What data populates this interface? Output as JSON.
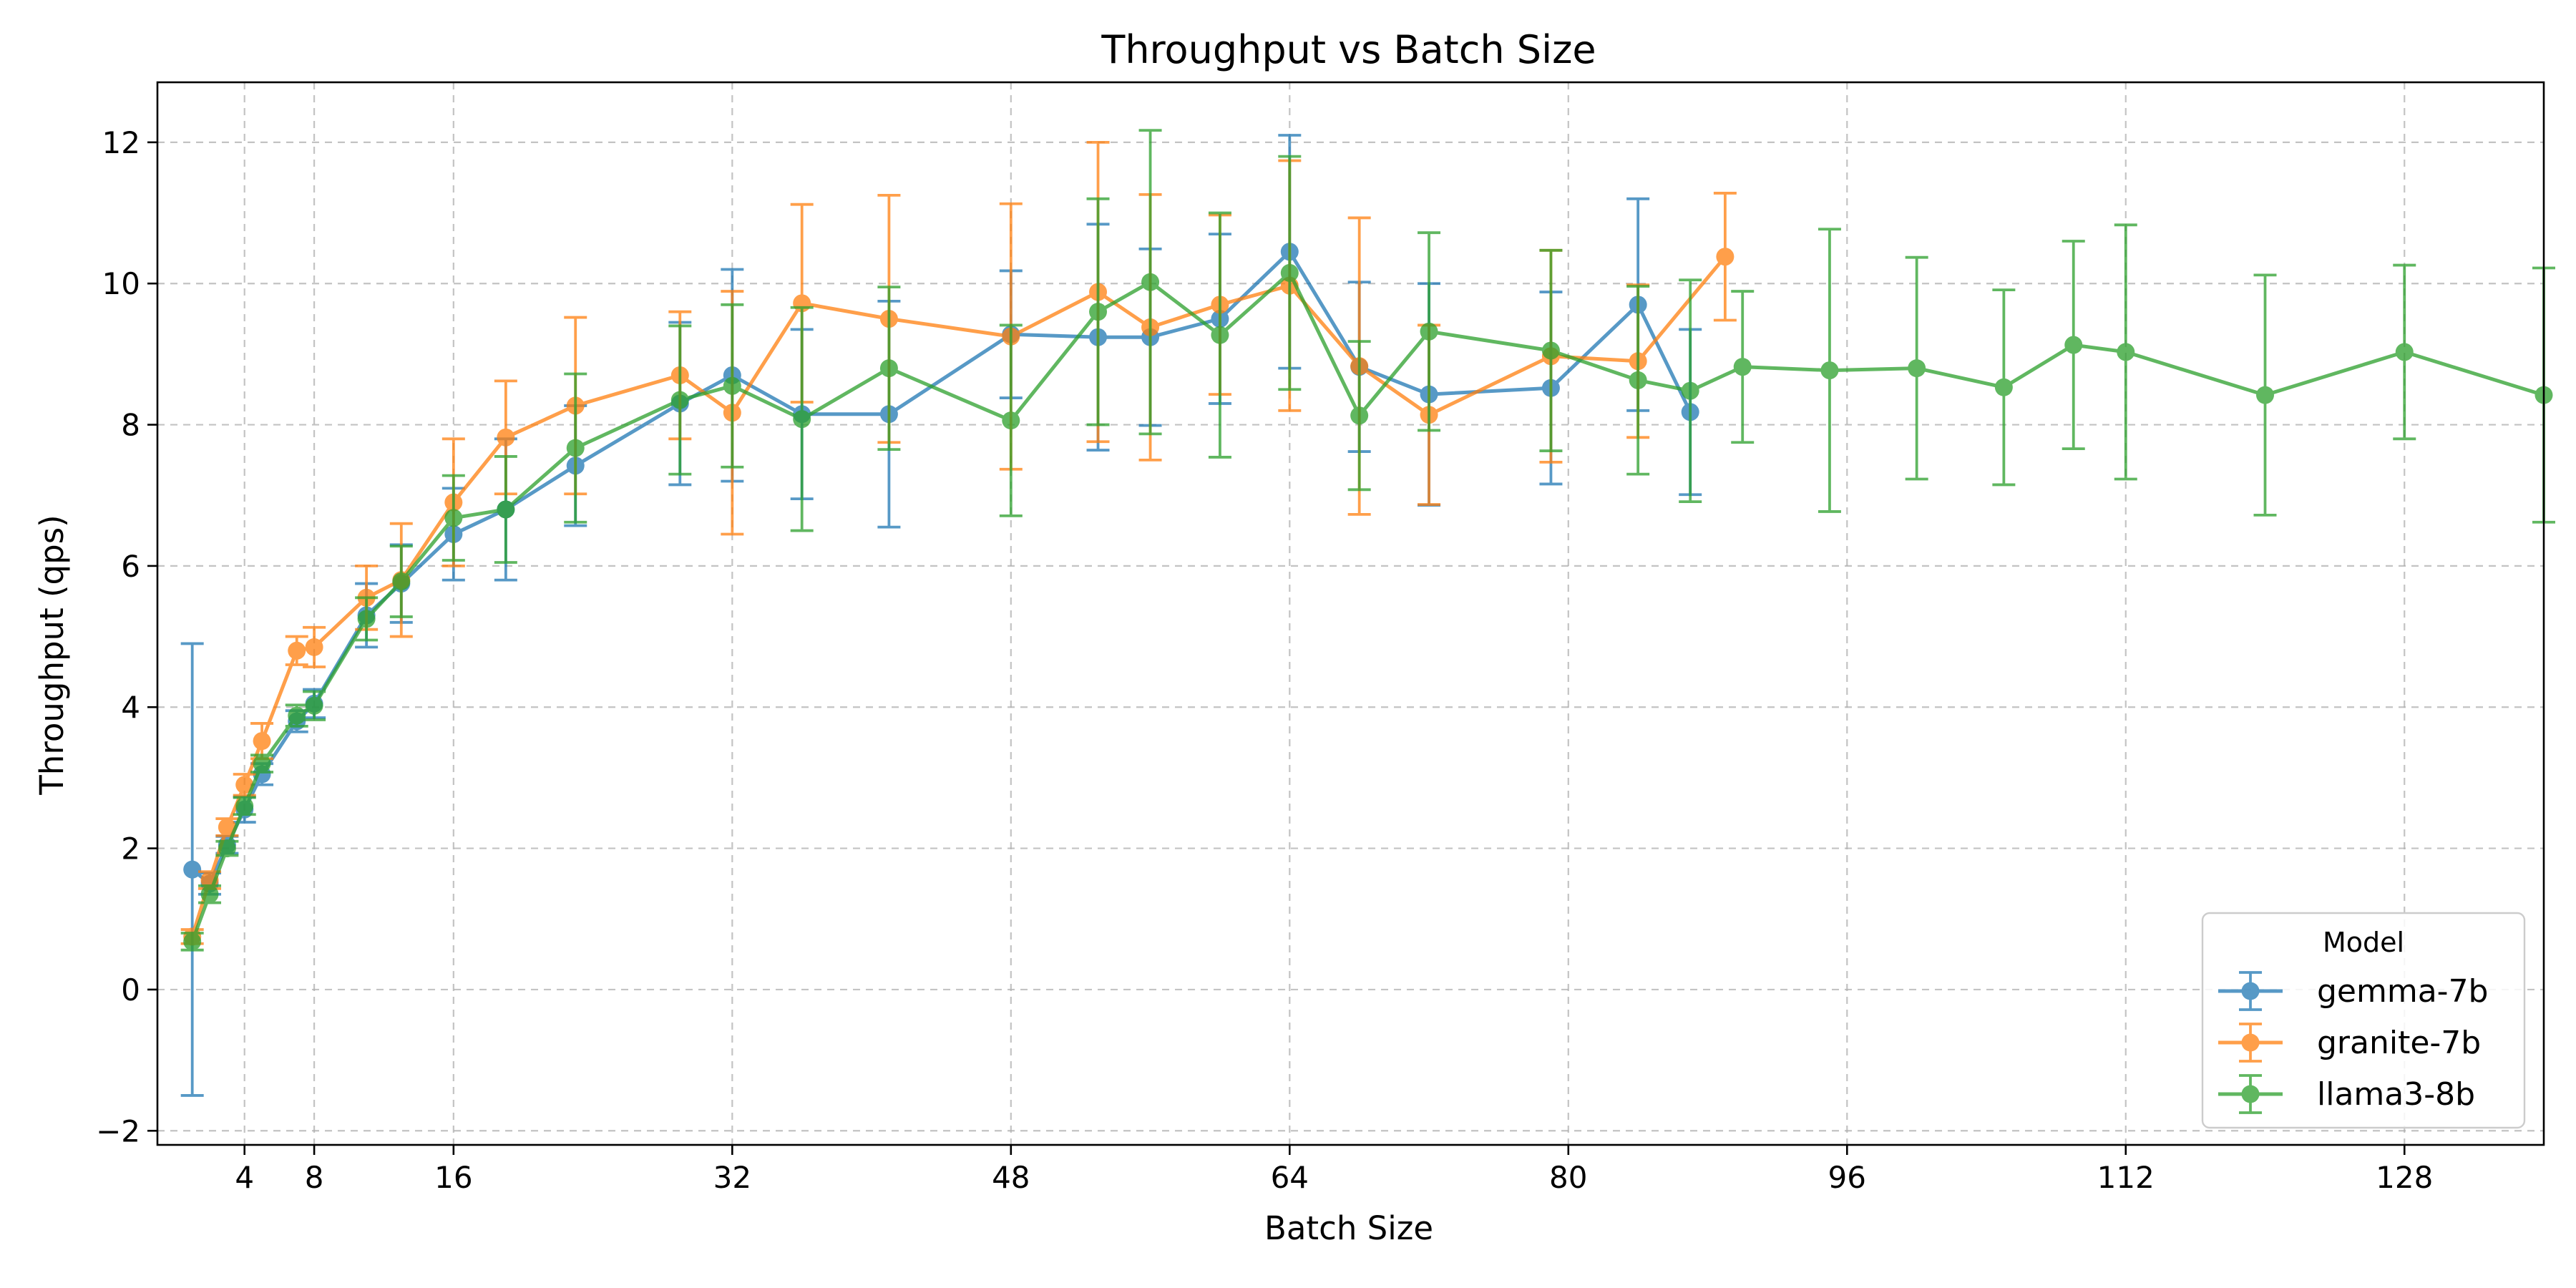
{
  "chart_data": {
    "type": "line",
    "title": "Throughput vs Batch Size",
    "xlabel": "Batch Size",
    "ylabel": "Throughput (qps)",
    "xlim": [
      -1,
      136
    ],
    "ylim": [
      -2.2,
      12.85
    ],
    "xticks": [
      4,
      8,
      16,
      32,
      48,
      64,
      80,
      96,
      112,
      128
    ],
    "yticks": [
      -2,
      0,
      2,
      4,
      6,
      8,
      10,
      12
    ],
    "ytick_labels": [
      "−2",
      "0",
      "2",
      "4",
      "6",
      "8",
      "10",
      "12"
    ],
    "grid": true,
    "legend": {
      "title": "Model",
      "position": "bottom-right"
    },
    "series": [
      {
        "name": "gemma-7b",
        "color": "#1f77b4",
        "points": [
          {
            "x": 1,
            "y": 1.7,
            "err": 3.2
          },
          {
            "x": 2,
            "y": 1.5,
            "err": 0.15
          },
          {
            "x": 3,
            "y": 2.05,
            "err": 0.12
          },
          {
            "x": 4,
            "y": 2.55,
            "err": 0.18
          },
          {
            "x": 5,
            "y": 3.05,
            "err": 0.15
          },
          {
            "x": 7,
            "y": 3.8,
            "err": 0.15
          },
          {
            "x": 8,
            "y": 4.05,
            "err": 0.2
          },
          {
            "x": 11,
            "y": 5.3,
            "err": 0.45
          },
          {
            "x": 13,
            "y": 5.75,
            "err": 0.55
          },
          {
            "x": 16,
            "y": 6.45,
            "err": 0.65
          },
          {
            "x": 19,
            "y": 6.8,
            "err": 1.0
          },
          {
            "x": 23,
            "y": 7.42,
            "err": 0.85
          },
          {
            "x": 29,
            "y": 8.3,
            "err": 1.15
          },
          {
            "x": 32,
            "y": 8.7,
            "err": 1.5
          },
          {
            "x": 36,
            "y": 8.15,
            "err": 1.2
          },
          {
            "x": 41,
            "y": 8.15,
            "err": 1.6
          },
          {
            "x": 48,
            "y": 9.28,
            "err": 0.9
          },
          {
            "x": 53,
            "y": 9.24,
            "err": 1.6
          },
          {
            "x": 56,
            "y": 9.24,
            "err": 1.25
          },
          {
            "x": 60,
            "y": 9.5,
            "err": 1.2
          },
          {
            "x": 64,
            "y": 10.45,
            "err": 1.65
          },
          {
            "x": 68,
            "y": 8.82,
            "err": 1.2
          },
          {
            "x": 72,
            "y": 8.43,
            "err": 1.57
          },
          {
            "x": 79,
            "y": 8.52,
            "err": 1.36
          },
          {
            "x": 84,
            "y": 9.7,
            "err": 1.5
          },
          {
            "x": 87,
            "y": 8.18,
            "err": 1.17
          }
        ]
      },
      {
        "name": "granite-7b",
        "color": "#ff7f0e",
        "points": [
          {
            "x": 1,
            "y": 0.75,
            "err": 0.1
          },
          {
            "x": 2,
            "y": 1.55,
            "err": 0.12
          },
          {
            "x": 3,
            "y": 2.3,
            "err": 0.12
          },
          {
            "x": 4,
            "y": 2.9,
            "err": 0.15
          },
          {
            "x": 5,
            "y": 3.52,
            "err": 0.25
          },
          {
            "x": 7,
            "y": 4.8,
            "err": 0.2
          },
          {
            "x": 8,
            "y": 4.85,
            "err": 0.28
          },
          {
            "x": 11,
            "y": 5.55,
            "err": 0.45
          },
          {
            "x": 13,
            "y": 5.8,
            "err": 0.8
          },
          {
            "x": 16,
            "y": 6.9,
            "err": 0.9
          },
          {
            "x": 19,
            "y": 7.82,
            "err": 0.8
          },
          {
            "x": 23,
            "y": 8.27,
            "err": 1.25
          },
          {
            "x": 29,
            "y": 8.7,
            "err": 0.9
          },
          {
            "x": 32,
            "y": 8.17,
            "err": 1.72
          },
          {
            "x": 36,
            "y": 9.72,
            "err": 1.4
          },
          {
            "x": 41,
            "y": 9.5,
            "err": 1.75
          },
          {
            "x": 48,
            "y": 9.25,
            "err": 1.88
          },
          {
            "x": 53,
            "y": 9.88,
            "err": 2.12
          },
          {
            "x": 56,
            "y": 9.38,
            "err": 1.88
          },
          {
            "x": 60,
            "y": 9.7,
            "err": 1.27
          },
          {
            "x": 64,
            "y": 9.97,
            "err": 1.77
          },
          {
            "x": 68,
            "y": 8.83,
            "err": 2.1
          },
          {
            "x": 72,
            "y": 8.14,
            "err": 1.27
          },
          {
            "x": 79,
            "y": 8.97,
            "err": 1.5
          },
          {
            "x": 84,
            "y": 8.9,
            "err": 1.08
          },
          {
            "x": 89,
            "y": 10.38,
            "err": 0.9
          }
        ]
      },
      {
        "name": "llama3-8b",
        "color": "#2ca02c",
        "points": [
          {
            "x": 1,
            "y": 0.68,
            "err": 0.12
          },
          {
            "x": 2,
            "y": 1.35,
            "err": 0.12
          },
          {
            "x": 3,
            "y": 2.0,
            "err": 0.1
          },
          {
            "x": 4,
            "y": 2.6,
            "err": 0.12
          },
          {
            "x": 5,
            "y": 3.2,
            "err": 0.12
          },
          {
            "x": 7,
            "y": 3.88,
            "err": 0.15
          },
          {
            "x": 8,
            "y": 4.02,
            "err": 0.2
          },
          {
            "x": 11,
            "y": 5.25,
            "err": 0.3
          },
          {
            "x": 13,
            "y": 5.78,
            "err": 0.5
          },
          {
            "x": 16,
            "y": 6.68,
            "err": 0.6
          },
          {
            "x": 19,
            "y": 6.8,
            "err": 0.75
          },
          {
            "x": 23,
            "y": 7.67,
            "err": 1.05
          },
          {
            "x": 29,
            "y": 8.35,
            "err": 1.05
          },
          {
            "x": 32,
            "y": 8.55,
            "err": 1.15
          },
          {
            "x": 36,
            "y": 8.08,
            "err": 1.58
          },
          {
            "x": 41,
            "y": 8.8,
            "err": 1.15
          },
          {
            "x": 48,
            "y": 8.06,
            "err": 1.35
          },
          {
            "x": 53,
            "y": 9.6,
            "err": 1.6
          },
          {
            "x": 56,
            "y": 10.02,
            "err": 2.15
          },
          {
            "x": 60,
            "y": 9.27,
            "err": 1.73
          },
          {
            "x": 64,
            "y": 10.15,
            "err": 1.65
          },
          {
            "x": 68,
            "y": 8.13,
            "err": 1.05
          },
          {
            "x": 72,
            "y": 9.32,
            "err": 1.4
          },
          {
            "x": 79,
            "y": 9.05,
            "err": 1.42
          },
          {
            "x": 84,
            "y": 8.63,
            "err": 1.33
          },
          {
            "x": 87,
            "y": 8.48,
            "err": 1.57
          },
          {
            "x": 90,
            "y": 8.82,
            "err": 1.07
          },
          {
            "x": 95,
            "y": 8.77,
            "err": 2.0
          },
          {
            "x": 100,
            "y": 8.8,
            "err": 1.57
          },
          {
            "x": 105,
            "y": 8.53,
            "err": 1.38
          },
          {
            "x": 109,
            "y": 9.13,
            "err": 1.47
          },
          {
            "x": 112,
            "y": 9.03,
            "err": 1.8
          },
          {
            "x": 120,
            "y": 8.42,
            "err": 1.7
          },
          {
            "x": 128,
            "y": 9.03,
            "err": 1.23
          },
          {
            "x": 136,
            "y": 8.42,
            "err": 1.8
          }
        ]
      }
    ]
  }
}
